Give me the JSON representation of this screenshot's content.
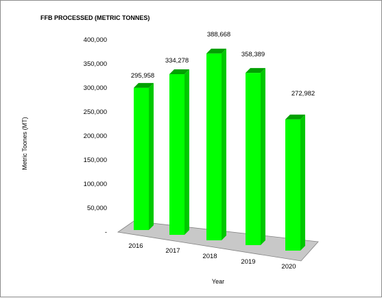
{
  "chart_data": {
    "type": "bar",
    "title": "FFB PROCESSED (METRIC TONNES)",
    "xlabel": "Year",
    "ylabel": "Metric Toones (MT)",
    "categories": [
      "2016",
      "2017",
      "2018",
      "2019",
      "2020"
    ],
    "values": [
      295958,
      334278,
      388668,
      358389,
      272982
    ],
    "data_labels": [
      "295,958",
      "334,278",
      "388,668",
      "358,389",
      "272,982"
    ],
    "y_ticks": [
      0,
      50000,
      100000,
      150000,
      200000,
      250000,
      300000,
      350000,
      400000
    ],
    "y_tick_labels": [
      "-",
      "50,000",
      "100,000",
      "150,000",
      "200,000",
      "250,000",
      "300,000",
      "350,000",
      "400,000"
    ],
    "ylim": [
      0,
      400000
    ],
    "grid": false,
    "legend": "none",
    "colors": {
      "bar_front": "#00ff00",
      "bar_side": "#00c800",
      "bar_top": "#00a000",
      "floor": "#c8c8c8"
    }
  }
}
